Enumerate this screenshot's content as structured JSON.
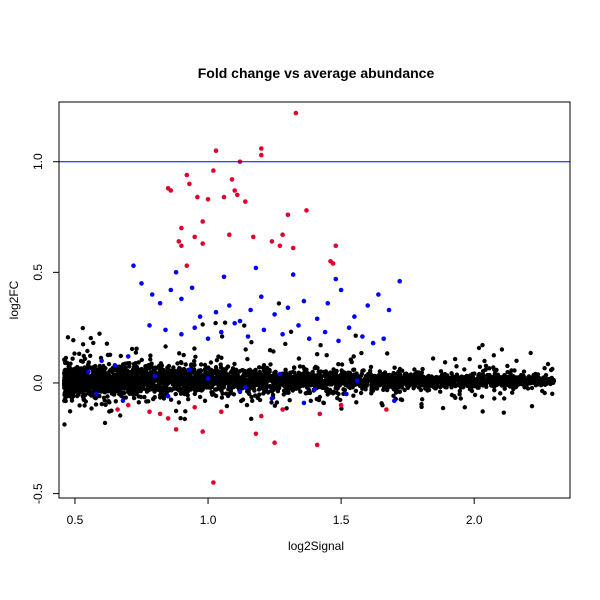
{
  "chart_data": {
    "type": "scatter",
    "title": "Fold change vs average abundance",
    "xlabel": "log2Signal",
    "ylabel": "log2FC",
    "xlim": [
      0.44,
      2.36
    ],
    "ylim": [
      -0.52,
      1.27
    ],
    "xticks": [
      0.5,
      1.0,
      1.5,
      2.0
    ],
    "xtick_labels": [
      "0.5",
      "1.0",
      "1.5",
      "2.0"
    ],
    "yticks": [
      -0.5,
      0.0,
      0.5,
      1.0
    ],
    "ytick_labels": [
      "-0.5",
      "0.0",
      "0.5",
      "1.0"
    ],
    "grid": false,
    "legend": "none",
    "reference_line": {
      "y": 1.0,
      "color": "#0000ff"
    },
    "colors": {
      "other": "#000000",
      "blue": "#0000ff",
      "red": "#e0002a"
    },
    "series": [
      {
        "color": "#e0002a",
        "x": [
          1.33,
          1.2,
          1.2,
          1.03,
          1.12,
          0.85,
          0.92,
          1.02,
          1.09,
          1.1,
          1.11,
          0.93,
          0.96,
          1.06,
          0.86,
          1.0,
          1.14,
          1.3,
          1.37,
          1.17,
          0.98,
          1.24,
          1.27,
          1.08,
          1.32,
          0.89,
          0.9,
          0.95,
          0.92,
          1.28,
          1.48,
          1.46,
          1.47,
          0.98,
          0.9,
          0.66,
          0.7,
          0.78,
          0.82,
          0.85,
          0.95,
          1.05,
          1.2,
          1.28,
          1.42,
          1.5,
          1.67,
          1.02,
          0.88,
          0.98,
          1.18,
          1.25,
          1.41
        ],
        "y": [
          1.22,
          1.06,
          1.03,
          1.05,
          1.0,
          0.88,
          0.94,
          0.96,
          0.92,
          0.87,
          0.85,
          0.9,
          0.84,
          0.84,
          0.87,
          0.83,
          0.82,
          0.76,
          0.78,
          0.66,
          0.73,
          0.64,
          0.62,
          0.67,
          0.61,
          0.64,
          0.62,
          0.66,
          0.53,
          0.67,
          0.62,
          0.55,
          0.54,
          0.63,
          0.7,
          -0.12,
          -0.1,
          -0.13,
          -0.14,
          -0.16,
          -0.11,
          -0.13,
          -0.15,
          -0.12,
          -0.14,
          -0.1,
          -0.12,
          -0.45,
          -0.21,
          -0.22,
          -0.23,
          -0.27,
          -0.28
        ]
      },
      {
        "color": "#0000ff",
        "x": [
          0.75,
          0.79,
          0.82,
          0.86,
          0.9,
          0.94,
          0.97,
          1.03,
          1.08,
          1.12,
          1.16,
          1.2,
          1.25,
          1.3,
          1.36,
          1.41,
          1.45,
          1.5,
          1.55,
          1.6,
          1.64,
          1.68,
          1.72,
          0.78,
          0.84,
          0.9,
          0.95,
          1.0,
          1.05,
          1.1,
          1.15,
          1.21,
          1.28,
          1.34,
          1.38,
          1.44,
          1.49,
          1.53,
          1.58,
          1.62,
          1.66,
          0.72,
          0.88,
          1.06,
          1.18,
          1.32,
          1.48,
          0.55,
          0.6,
          0.65,
          0.7,
          0.8,
          0.93,
          1.0,
          1.14,
          1.27,
          1.4,
          1.56,
          0.58,
          0.68,
          0.85,
          1.12,
          1.24,
          1.36,
          1.52,
          1.7
        ],
        "y": [
          0.45,
          0.4,
          0.36,
          0.42,
          0.38,
          0.43,
          0.3,
          0.32,
          0.35,
          0.28,
          0.33,
          0.39,
          0.31,
          0.34,
          0.37,
          0.29,
          0.36,
          0.42,
          0.3,
          0.35,
          0.4,
          0.33,
          0.46,
          0.26,
          0.24,
          0.22,
          0.25,
          0.2,
          0.23,
          0.27,
          0.21,
          0.24,
          0.22,
          0.26,
          0.2,
          0.23,
          0.19,
          0.25,
          0.21,
          0.18,
          0.2,
          0.53,
          0.5,
          0.48,
          0.52,
          0.49,
          0.47,
          0.05,
          0.1,
          0.08,
          0.12,
          0.03,
          0.06,
          0.02,
          -0.02,
          0.04,
          -0.03,
          0.01,
          -0.05,
          -0.08,
          -0.06,
          -0.04,
          -0.07,
          -0.09,
          -0.05,
          -0.08
        ]
      }
    ]
  }
}
